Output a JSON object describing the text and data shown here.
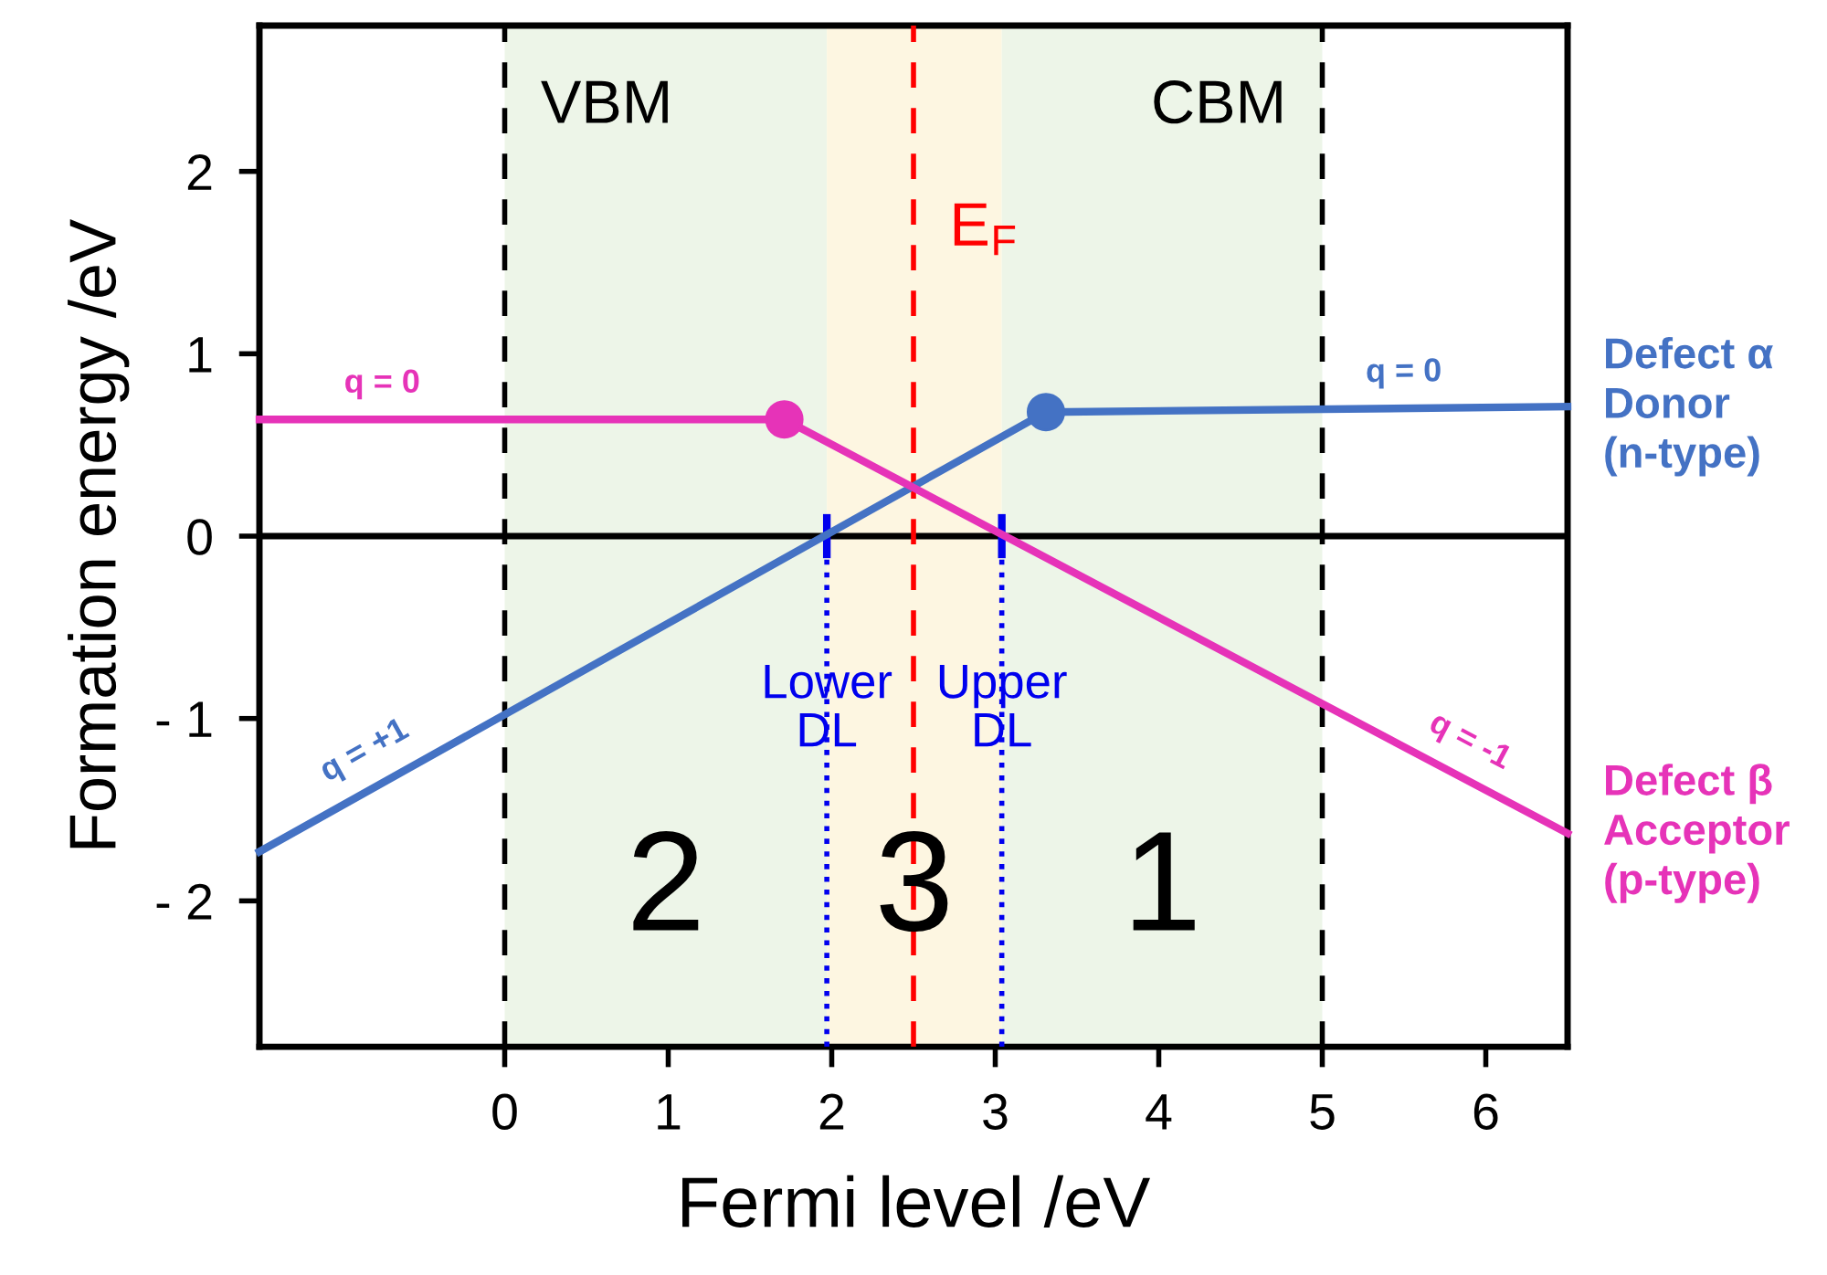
{
  "chart_data": {
    "type": "line",
    "xlabel": "Fermi level /eV",
    "ylabel": "Formation energy /eV",
    "xlim": [
      -1.5,
      6.5
    ],
    "ylim": [
      -2.8,
      2.8
    ],
    "xticks": [
      0,
      1,
      2,
      3,
      4,
      5,
      6
    ],
    "yticks": [
      {
        "value": -2,
        "label": "- 2"
      },
      {
        "value": -1,
        "label": "- 1"
      },
      0,
      1,
      2
    ],
    "grid": false,
    "legend": false,
    "series": [
      {
        "name": "Defect α\nDonor\n(n-type)",
        "color": "#4472c4",
        "x": [
          -1.5,
          3.31,
          6.5
        ],
        "values": [
          -1.73,
          0.68,
          0.71
        ],
        "marker": "none",
        "line_style": "solid"
      },
      {
        "name": "Defect β\nAcceptor\n(p-type)",
        "color": "#e633b8",
        "x": [
          -1.5,
          1.71,
          6.5
        ],
        "values": [
          0.64,
          0.64,
          -1.63
        ],
        "marker": "none",
        "line_style": "solid"
      },
      {
        "type": "scatter",
        "x": [
          1.71,
          3.31
        ],
        "values": [
          0.64,
          0.68
        ],
        "colors": [
          "#e633b8",
          "#4472c4"
        ],
        "marker": "circle"
      }
    ],
    "ref_lines": [
      {
        "axis": "y",
        "value": 0,
        "color": "#000000",
        "line_style": "solid"
      },
      {
        "axis": "x",
        "value": 0,
        "label": "VBM",
        "color": "#000000",
        "line_style": "dashed"
      },
      {
        "axis": "x",
        "value": 5,
        "label": "CBM",
        "color": "#000000",
        "line_style": "dashed"
      },
      {
        "axis": "x",
        "value": 2.5,
        "label": "E$_{F}$",
        "color": "#ff0000",
        "line_style": "dashed"
      },
      {
        "axis": "x",
        "value": 1.97,
        "label": "Lower\nDL",
        "color": "#0000ee",
        "line_style": "dotted"
      },
      {
        "axis": "x",
        "value": 3.04,
        "label": "Upper\nDL",
        "color": "#0000ee",
        "line_style": "dotted"
      }
    ],
    "bands": [
      {
        "axis": "x",
        "from": 0,
        "to": 1.97,
        "label": "2",
        "color": "#edf5e8"
      },
      {
        "axis": "x",
        "from": 1.97,
        "to": 3.04,
        "label": "3",
        "color": "#fdf6e1"
      },
      {
        "axis": "x",
        "from": 3.04,
        "to": 5,
        "label": "1",
        "color": "#edf5e8"
      }
    ],
    "annotations": [
      {
        "text": "q = 0",
        "x": -0.75,
        "y": 0.64
      },
      {
        "text": "q = +1",
        "x": -0.75,
        "y": -1.35
      },
      {
        "text": "q = 0",
        "x": 5.5,
        "y": 0.7
      },
      {
        "text": "q = -1",
        "x": 5.8,
        "y": -1.3
      }
    ]
  }
}
